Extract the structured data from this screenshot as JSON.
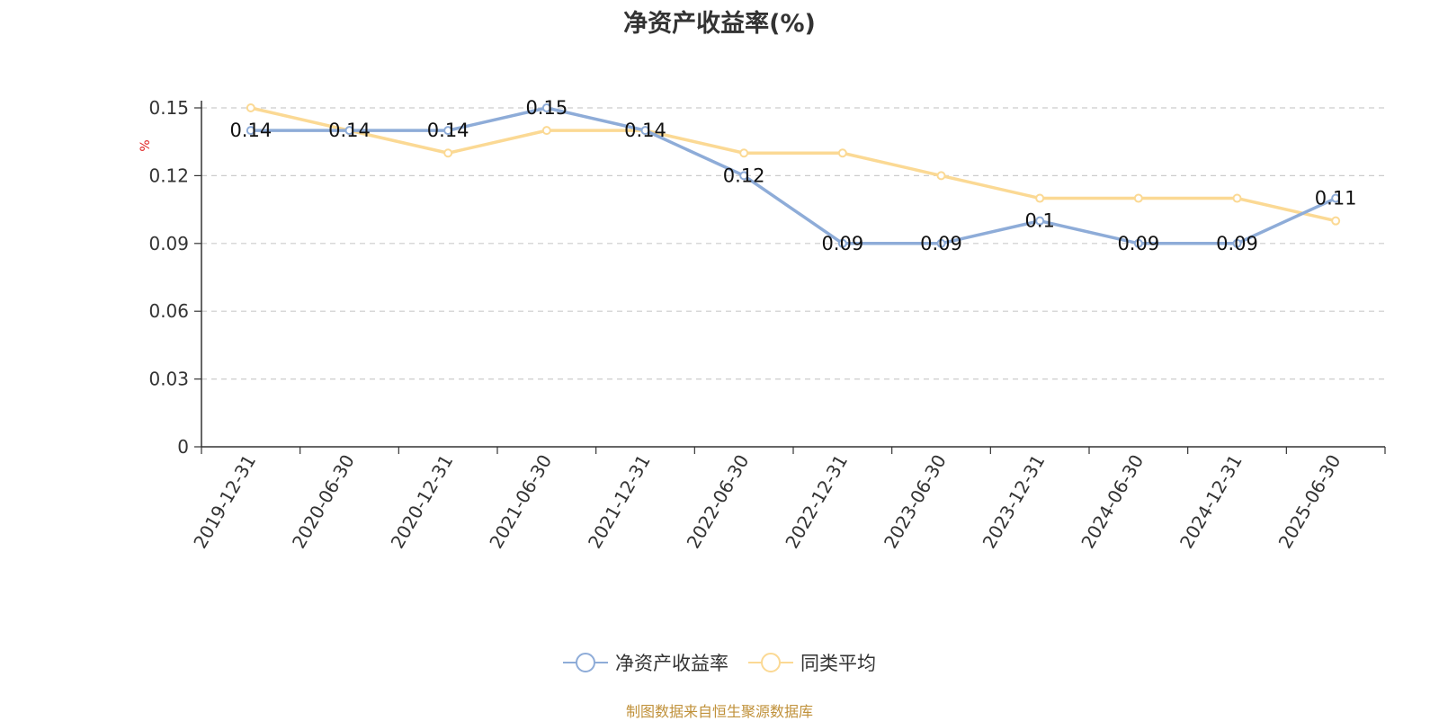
{
  "chart_data": {
    "type": "line",
    "title": "净资产收益率(%)",
    "ylabel": "%",
    "xlabel": "",
    "categories": [
      "2019-12-31",
      "2020-06-30",
      "2020-12-31",
      "2021-06-30",
      "2021-12-31",
      "2022-06-30",
      "2022-12-31",
      "2023-06-30",
      "2023-12-31",
      "2024-06-30",
      "2024-12-31",
      "2025-06-30"
    ],
    "series": [
      {
        "name": "净资产收益率",
        "color": "#8eacd8",
        "values": [
          0.14,
          0.14,
          0.14,
          0.15,
          0.14,
          0.12,
          0.09,
          0.09,
          0.1,
          0.09,
          0.09,
          0.11
        ],
        "labels": [
          "0.14",
          "0.14",
          "0.14",
          "0.15",
          "0.14",
          "0.12",
          "0.09",
          "0.09",
          "0.1",
          "0.09",
          "0.09",
          "0.11"
        ]
      },
      {
        "name": "同类平均",
        "color": "#fbd994",
        "values": [
          0.15,
          0.14,
          0.13,
          0.14,
          0.14,
          0.13,
          0.13,
          0.12,
          0.11,
          0.11,
          0.11,
          0.1
        ]
      }
    ],
    "ylim": [
      0,
      0.15
    ],
    "yticks": [
      "0",
      "0.03",
      "0.06",
      "0.09",
      "0.12",
      "0.15"
    ],
    "grid": true,
    "legend_position": "bottom"
  },
  "source_text": "制图数据来自恒生聚源数据库"
}
